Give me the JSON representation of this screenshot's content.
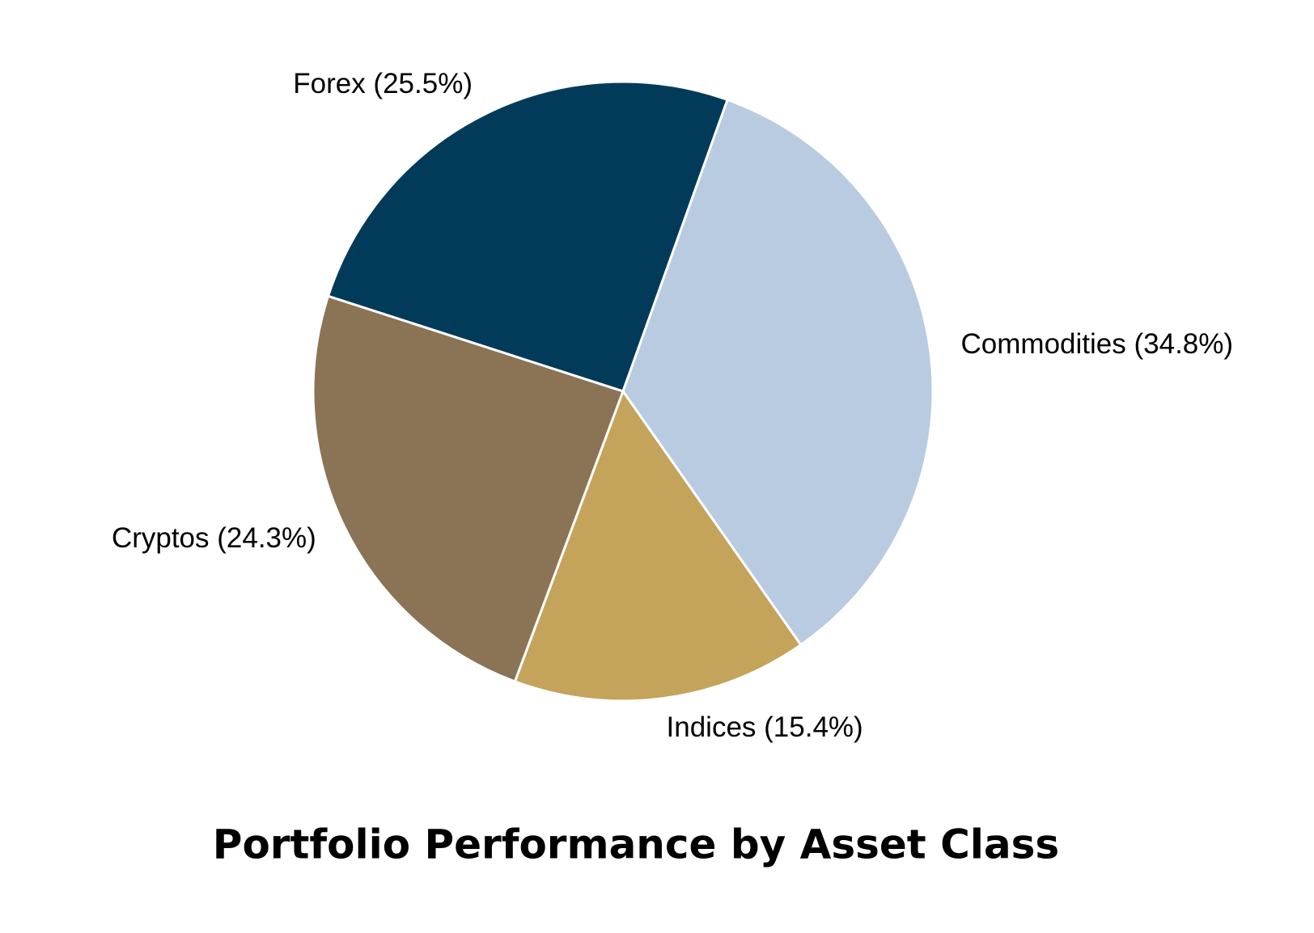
{
  "chart_data": {
    "type": "pie",
    "title": "Portfolio Performance by Asset Class",
    "values": [
      25.5,
      34.8,
      15.4,
      24.3
    ],
    "value_labels": [
      "Forex (25.5%)",
      "Commodities (34.8%)",
      "Indices (15.4%)",
      "Cryptos (24.3%)"
    ],
    "colors": [
      "#023b59",
      "#b8cbe1",
      "#c4a35a",
      "#8b7355"
    ]
  }
}
